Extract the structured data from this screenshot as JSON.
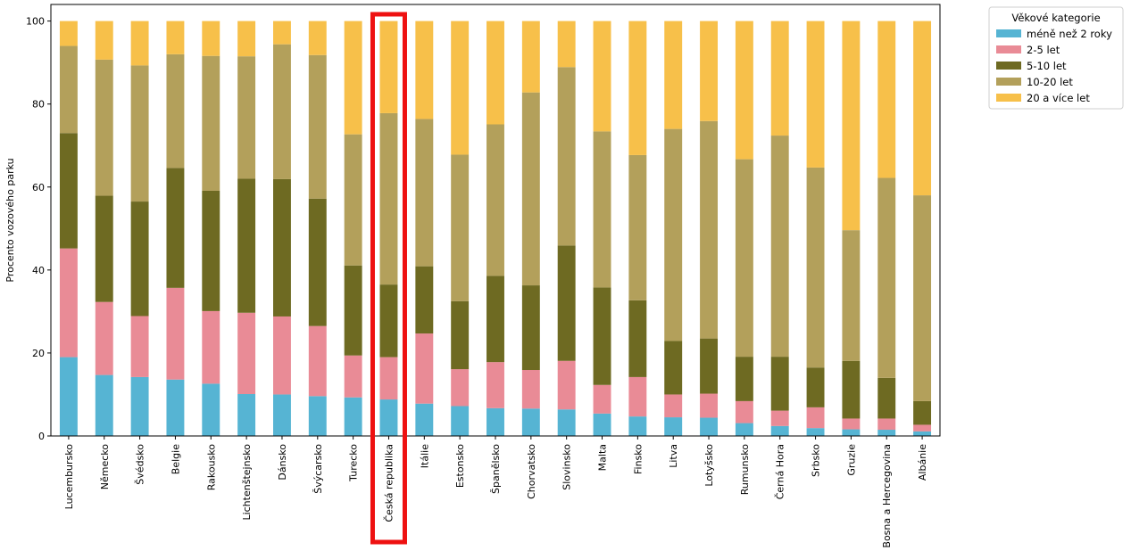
{
  "chart_data": {
    "type": "bar",
    "stacked": true,
    "ylabel": "Procento vozového parku",
    "xlabel": "",
    "ylim": [
      0,
      104
    ],
    "yticks": [
      "0",
      "20",
      "40",
      "60",
      "80",
      "100"
    ],
    "categories": [
      "Lucembursko",
      "Německo",
      "Švédsko",
      "Belgie",
      "Rakousko",
      "Lichtenštejnsko",
      "Dánsko",
      "Švýcarsko",
      "Turecko",
      "Česká republika",
      "Itálie",
      "Estonsko",
      "Španělsko",
      "Chorvatsko",
      "Slovinsko",
      "Malta",
      "Finsko",
      "Litva",
      "Lotyšsko",
      "Rumunsko",
      "Černá Hora",
      "Srbsko",
      "Gruzie",
      "Bosna a Hercegovina",
      "Albánie"
    ],
    "highlighted_category": "Česká republika",
    "legend": {
      "title": "Věkové kategorie",
      "position": "outside-top-right"
    },
    "series": [
      {
        "name": "méně než 2 roky",
        "color": "#56b4d3",
        "values": [
          19,
          14.7,
          14.2,
          13.6,
          12.6,
          10.1,
          10,
          9.6,
          9.3,
          8.8,
          7.8,
          7.2,
          6.7,
          6.6,
          6.4,
          5.4,
          4.7,
          4.5,
          4.4,
          3.1,
          2.4,
          1.9,
          1.6,
          1.5,
          1.1
        ]
      },
      {
        "name": "2-5 let",
        "color": "#e98b96",
        "values": [
          26.2,
          17.6,
          14.7,
          22.1,
          17.5,
          19.6,
          18.8,
          16.9,
          10.1,
          10.2,
          16.9,
          8.9,
          11.1,
          9.3,
          11.7,
          6.9,
          9.5,
          5.5,
          5.8,
          5.3,
          3.7,
          5,
          2.6,
          2.7,
          1.6
        ]
      },
      {
        "name": "5-10 let",
        "color": "#6e6a22",
        "values": [
          27.8,
          25.6,
          27.6,
          28.9,
          29,
          32.3,
          33.1,
          30.7,
          21.7,
          17.5,
          16.2,
          16.4,
          20.8,
          20.4,
          27.8,
          23.5,
          18.5,
          12.9,
          13.3,
          10.7,
          13,
          9.6,
          13.9,
          9.8,
          5.7
        ]
      },
      {
        "name": "10-20 let",
        "color": "#b3a05b",
        "values": [
          21,
          32.8,
          32.8,
          27.4,
          32.5,
          29.5,
          32.5,
          34.6,
          31.6,
          41.3,
          35.5,
          35.3,
          36.5,
          46.5,
          43,
          37.6,
          35,
          51.1,
          52.4,
          47.6,
          53.3,
          48.2,
          31.5,
          48.2,
          49.6
        ]
      },
      {
        "name": "20 a více let",
        "color": "#f7c04a",
        "values": [
          6,
          9.3,
          10.7,
          8,
          8.4,
          8.5,
          5.6,
          8.2,
          27.3,
          22.2,
          23.6,
          32.2,
          24.9,
          17.2,
          11.1,
          26.6,
          32.3,
          26,
          24.1,
          33.3,
          27.6,
          35.3,
          50.4,
          37.8,
          42
        ]
      }
    ]
  }
}
